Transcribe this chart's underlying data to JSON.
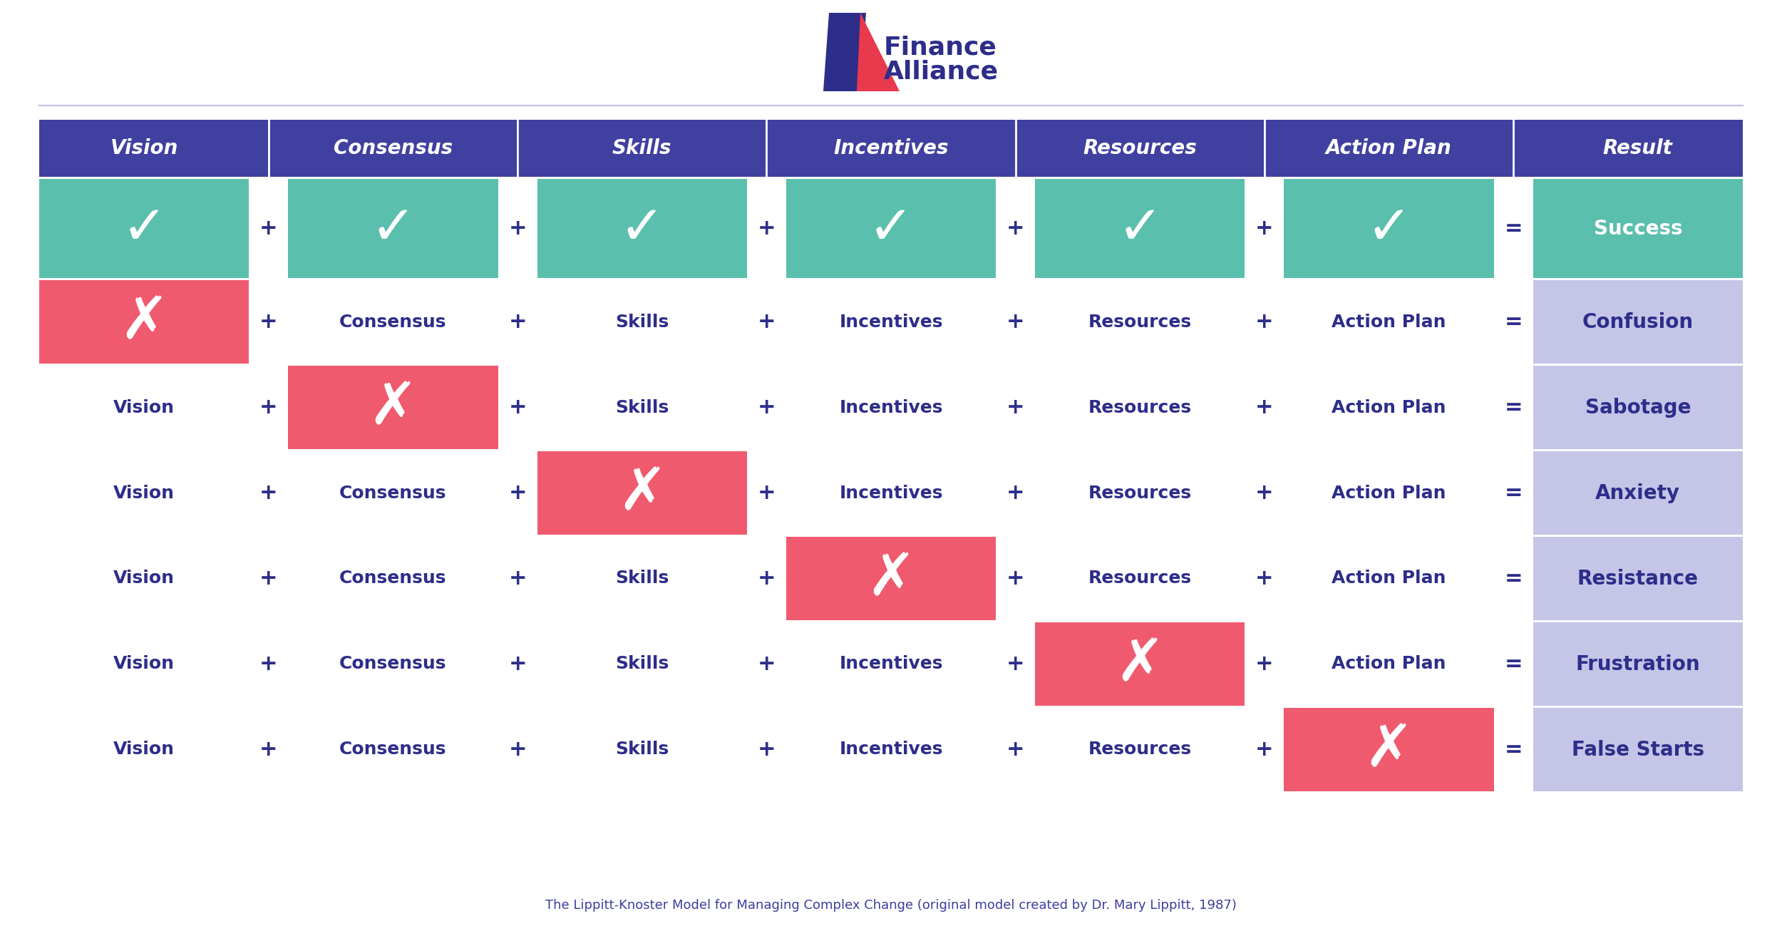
{
  "subtitle": "The Lippitt-Knoster Model for Managing Complex Change (original model created by Dr. Mary Lippitt, 1987)",
  "columns": [
    "Vision",
    "Consensus",
    "Skills",
    "Incentives",
    "Resources",
    "Action Plan",
    "Result"
  ],
  "rows": [
    {
      "missing": -1,
      "result": "Success"
    },
    {
      "missing": 0,
      "result": "Confusion"
    },
    {
      "missing": 1,
      "result": "Sabotage"
    },
    {
      "missing": 2,
      "result": "Anxiety"
    },
    {
      "missing": 3,
      "result": "Resistance"
    },
    {
      "missing": 4,
      "result": "Frustration"
    },
    {
      "missing": 5,
      "result": "False Starts"
    }
  ],
  "header_bg": "#4040a0",
  "header_text": "#ffffff",
  "teal_bg": "#5bbfad",
  "red_bg": "#f05a6e",
  "result_bg": "#c5c5e8",
  "result_text": "#2d2d8a",
  "text_color": "#2d2d8a",
  "bg_color": "#ffffff",
  "operator_color": "#2d2d8a",
  "logo_blue": "#2d2d8a",
  "logo_red": "#e8394d",
  "divider_color": "#ffffff",
  "footer_color": "#3d3d9e"
}
